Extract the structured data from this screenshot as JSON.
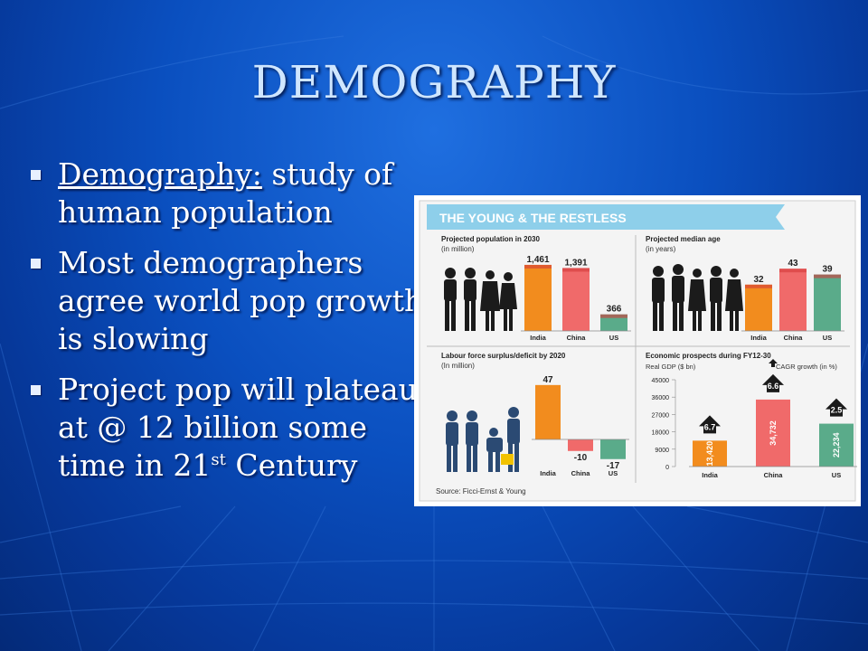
{
  "slide": {
    "title": "DEMOGRAPHY",
    "bullets": [
      {
        "term": "Demography:",
        "text": " study of human population"
      },
      {
        "text": "Most demographers agree world pop growth is slowing"
      },
      {
        "text_pre": "Project pop will plateau at @ 12 billion some time in 21",
        "sup": "st",
        "text_post": " Century"
      }
    ]
  },
  "infographic": {
    "banner": "THE YOUNG & THE RESTLESS",
    "source": "Source: Ficci-Ernst & Young",
    "colors": {
      "india": "#f28c1e",
      "china": "#f06a6a",
      "us": "#5aab8a",
      "banner": "#8ecfea"
    },
    "chart_data": [
      {
        "type": "bar",
        "title": "Projected population in 2030",
        "subtitle": "(in million)",
        "categories": [
          "India",
          "China",
          "US"
        ],
        "values": [
          1461,
          1391,
          366
        ],
        "value_labels": [
          "1,461",
          "1,391",
          "366"
        ]
      },
      {
        "type": "bar",
        "title": "Projected median age",
        "subtitle": "(in years)",
        "categories": [
          "India",
          "China",
          "US"
        ],
        "values": [
          32,
          43,
          39
        ],
        "value_labels": [
          "32",
          "43",
          "39"
        ]
      },
      {
        "type": "bar",
        "title": "Labour force surplus/deficit by 2020",
        "subtitle": "(In million)",
        "categories": [
          "India",
          "China",
          "US"
        ],
        "values": [
          47,
          -10,
          -17
        ],
        "value_labels": [
          "47",
          "-10",
          "-17"
        ]
      },
      {
        "type": "bar",
        "title": "Economic prospects during FY12-30",
        "ylabel": "Real GDP ($ bn)",
        "legend": "CAGR growth (in %)",
        "categories": [
          "India",
          "China",
          "US"
        ],
        "values": [
          13420,
          34732,
          22234
        ],
        "value_labels": [
          "13,420",
          "34,732",
          "22,234"
        ],
        "cagr": [
          "6.7",
          "6.6",
          "2.5"
        ],
        "yticks": [
          "0",
          "9000",
          "18000",
          "27000",
          "36000",
          "45000"
        ],
        "ylim": [
          0,
          45000
        ]
      }
    ]
  }
}
